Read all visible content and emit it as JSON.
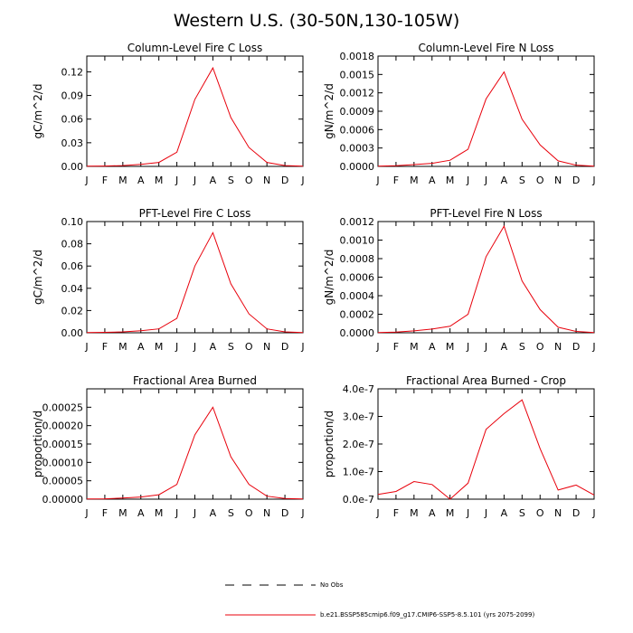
{
  "title": "Western U.S. (30-50N,130-105W)",
  "months": [
    "J",
    "F",
    "M",
    "A",
    "M",
    "J",
    "J",
    "A",
    "S",
    "O",
    "N",
    "D",
    "J"
  ],
  "line_color": "#e8000b",
  "legend": {
    "obs_label": "No Obs",
    "model_label": "b.e21.BSSP585cmip6.f09_g17.CMIP6-SSP5-8.5.101 (yrs 2075-2099)"
  },
  "chart_data": [
    {
      "type": "line",
      "title": "Column-Level Fire C Loss",
      "ylabel": "gC/m^2/d",
      "ylim": [
        0,
        0.14
      ],
      "yticks": [
        0.0,
        0.03,
        0.06,
        0.09,
        0.12
      ],
      "ytick_labels": [
        "0.00",
        "0.03",
        "0.06",
        "0.09",
        "0.12"
      ],
      "x": [
        "J",
        "F",
        "M",
        "A",
        "M",
        "J",
        "J",
        "A",
        "S",
        "O",
        "N",
        "D",
        "J"
      ],
      "values": [
        0.0003,
        0.0005,
        0.001,
        0.0025,
        0.005,
        0.018,
        0.085,
        0.125,
        0.062,
        0.024,
        0.005,
        0.001,
        0.0003
      ]
    },
    {
      "type": "line",
      "title": "Column-Level Fire N Loss",
      "ylabel": "gN/m^2/d",
      "ylim": [
        0,
        0.0018
      ],
      "yticks": [
        0.0,
        0.0003,
        0.0006,
        0.0009,
        0.0012,
        0.0015,
        0.0018
      ],
      "ytick_labels": [
        "0.0000",
        "0.0003",
        "0.0006",
        "0.0009",
        "0.0012",
        "0.0015",
        "0.0018"
      ],
      "x": [
        "J",
        "F",
        "M",
        "A",
        "M",
        "J",
        "J",
        "A",
        "S",
        "O",
        "N",
        "D",
        "J"
      ],
      "values": [
        5e-06,
        1e-05,
        3e-05,
        5e-05,
        0.0001,
        0.00028,
        0.0011,
        0.00154,
        0.00077,
        0.00035,
        9e-05,
        2e-05,
        5e-06
      ]
    },
    {
      "type": "line",
      "title": "PFT-Level Fire C Loss",
      "ylabel": "gC/m^2/d",
      "ylim": [
        0,
        0.1
      ],
      "yticks": [
        0.0,
        0.02,
        0.04,
        0.06,
        0.08,
        0.1
      ],
      "ytick_labels": [
        "0.00",
        "0.02",
        "0.04",
        "0.06",
        "0.08",
        "0.10"
      ],
      "x": [
        "J",
        "F",
        "M",
        "A",
        "M",
        "J",
        "J",
        "A",
        "S",
        "O",
        "N",
        "D",
        "J"
      ],
      "values": [
        0.0002,
        0.0004,
        0.0008,
        0.0018,
        0.0035,
        0.013,
        0.06,
        0.09,
        0.044,
        0.017,
        0.0035,
        0.0008,
        0.0002
      ]
    },
    {
      "type": "line",
      "title": "PFT-Level Fire N Loss",
      "ylabel": "gN/m^2/d",
      "ylim": [
        0,
        0.0012
      ],
      "yticks": [
        0.0,
        0.0002,
        0.0004,
        0.0006,
        0.0008,
        0.001,
        0.0012
      ],
      "ytick_labels": [
        "0.0000",
        "0.0002",
        "0.0004",
        "0.0006",
        "0.0008",
        "0.0010",
        "0.0012"
      ],
      "x": [
        "J",
        "F",
        "M",
        "A",
        "M",
        "J",
        "J",
        "A",
        "S",
        "O",
        "N",
        "D",
        "J"
      ],
      "values": [
        3e-06,
        8e-06,
        2e-05,
        4e-05,
        7e-05,
        0.0002,
        0.00082,
        0.00115,
        0.00056,
        0.00025,
        6e-05,
        1.5e-05,
        3e-06
      ]
    },
    {
      "type": "line",
      "title": "Fractional Area Burned",
      "ylabel": "proportion/d",
      "ylim": [
        0,
        0.0003
      ],
      "yticks": [
        0.0,
        5e-05,
        0.0001,
        0.00015,
        0.0002,
        0.00025
      ],
      "ytick_labels": [
        "0.00000",
        "0.00005",
        "0.00010",
        "0.00015",
        "0.00020",
        "0.00025"
      ],
      "x": [
        "J",
        "F",
        "M",
        "A",
        "M",
        "J",
        "J",
        "A",
        "S",
        "O",
        "N",
        "D",
        "J"
      ],
      "values": [
        5e-07,
        1e-06,
        3e-06,
        6e-06,
        1.2e-05,
        4e-05,
        0.000175,
        0.00025,
        0.000115,
        4e-05,
        8e-06,
        2e-06,
        5e-07
      ]
    },
    {
      "type": "line",
      "title": "Fractional Area Burned - Crop",
      "ylabel": "proportion/d",
      "ylim": [
        0,
        4e-07
      ],
      "yticks": [
        0,
        1e-07,
        2e-07,
        3e-07,
        4e-07
      ],
      "ytick_labels": [
        "0.0e-7",
        "1.0e-7",
        "2.0e-7",
        "3.0e-7",
        "4.0e-7"
      ],
      "x": [
        "J",
        "F",
        "M",
        "A",
        "M",
        "J",
        "J",
        "A",
        "S",
        "O",
        "N",
        "D",
        "J"
      ],
      "values": [
        1.7e-08,
        2.8e-08,
        6.4e-08,
        5.3e-08,
        0,
        5.8e-08,
        2.53e-07,
        3.1e-07,
        3.6e-07,
        1.83e-07,
        3.3e-08,
        5.1e-08,
        1.5e-08
      ]
    }
  ]
}
